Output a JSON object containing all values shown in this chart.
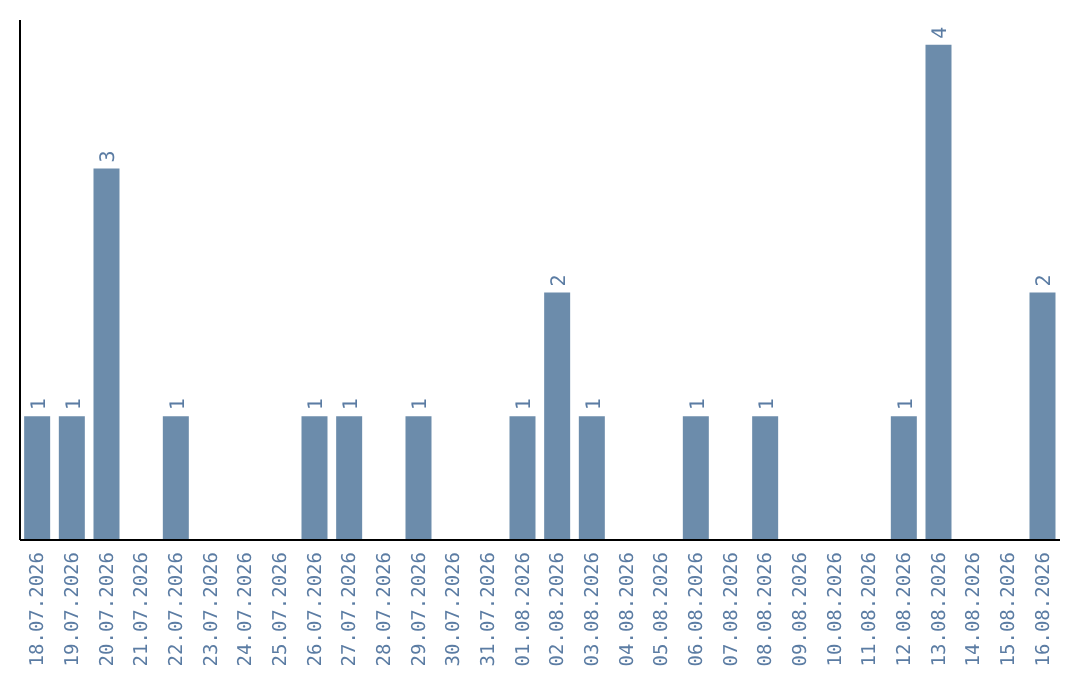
{
  "chart_data": {
    "type": "bar",
    "categories": [
      "18.07.2026",
      "19.07.2026",
      "20.07.2026",
      "21.07.2026",
      "22.07.2026",
      "23.07.2026",
      "24.07.2026",
      "25.07.2026",
      "26.07.2026",
      "27.07.2026",
      "28.07.2026",
      "29.07.2026",
      "30.07.2026",
      "31.07.2026",
      "01.08.2026",
      "02.08.2026",
      "03.08.2026",
      "04.08.2026",
      "05.08.2026",
      "06.08.2026",
      "07.08.2026",
      "08.08.2026",
      "09.08.2026",
      "10.08.2026",
      "11.08.2026",
      "12.08.2026",
      "13.08.2026",
      "14.08.2026",
      "15.08.2026",
      "16.08.2026"
    ],
    "values": [
      1,
      1,
      3,
      0,
      1,
      0,
      0,
      0,
      1,
      1,
      0,
      1,
      0,
      0,
      1,
      2,
      1,
      0,
      0,
      1,
      0,
      1,
      0,
      0,
      0,
      1,
      4,
      0,
      0,
      2
    ],
    "value_labels": [
      "1",
      "1",
      "3",
      null,
      "1",
      null,
      null,
      null,
      "1",
      "1",
      null,
      "1",
      null,
      null,
      "1",
      "2",
      "1",
      null,
      null,
      "1",
      null,
      "1",
      null,
      null,
      null,
      "1",
      "4",
      null,
      null,
      "2"
    ],
    "color": "#6c8cab",
    "ylim": [
      0,
      4.2
    ],
    "tick_labels": "x",
    "grid": false
  }
}
